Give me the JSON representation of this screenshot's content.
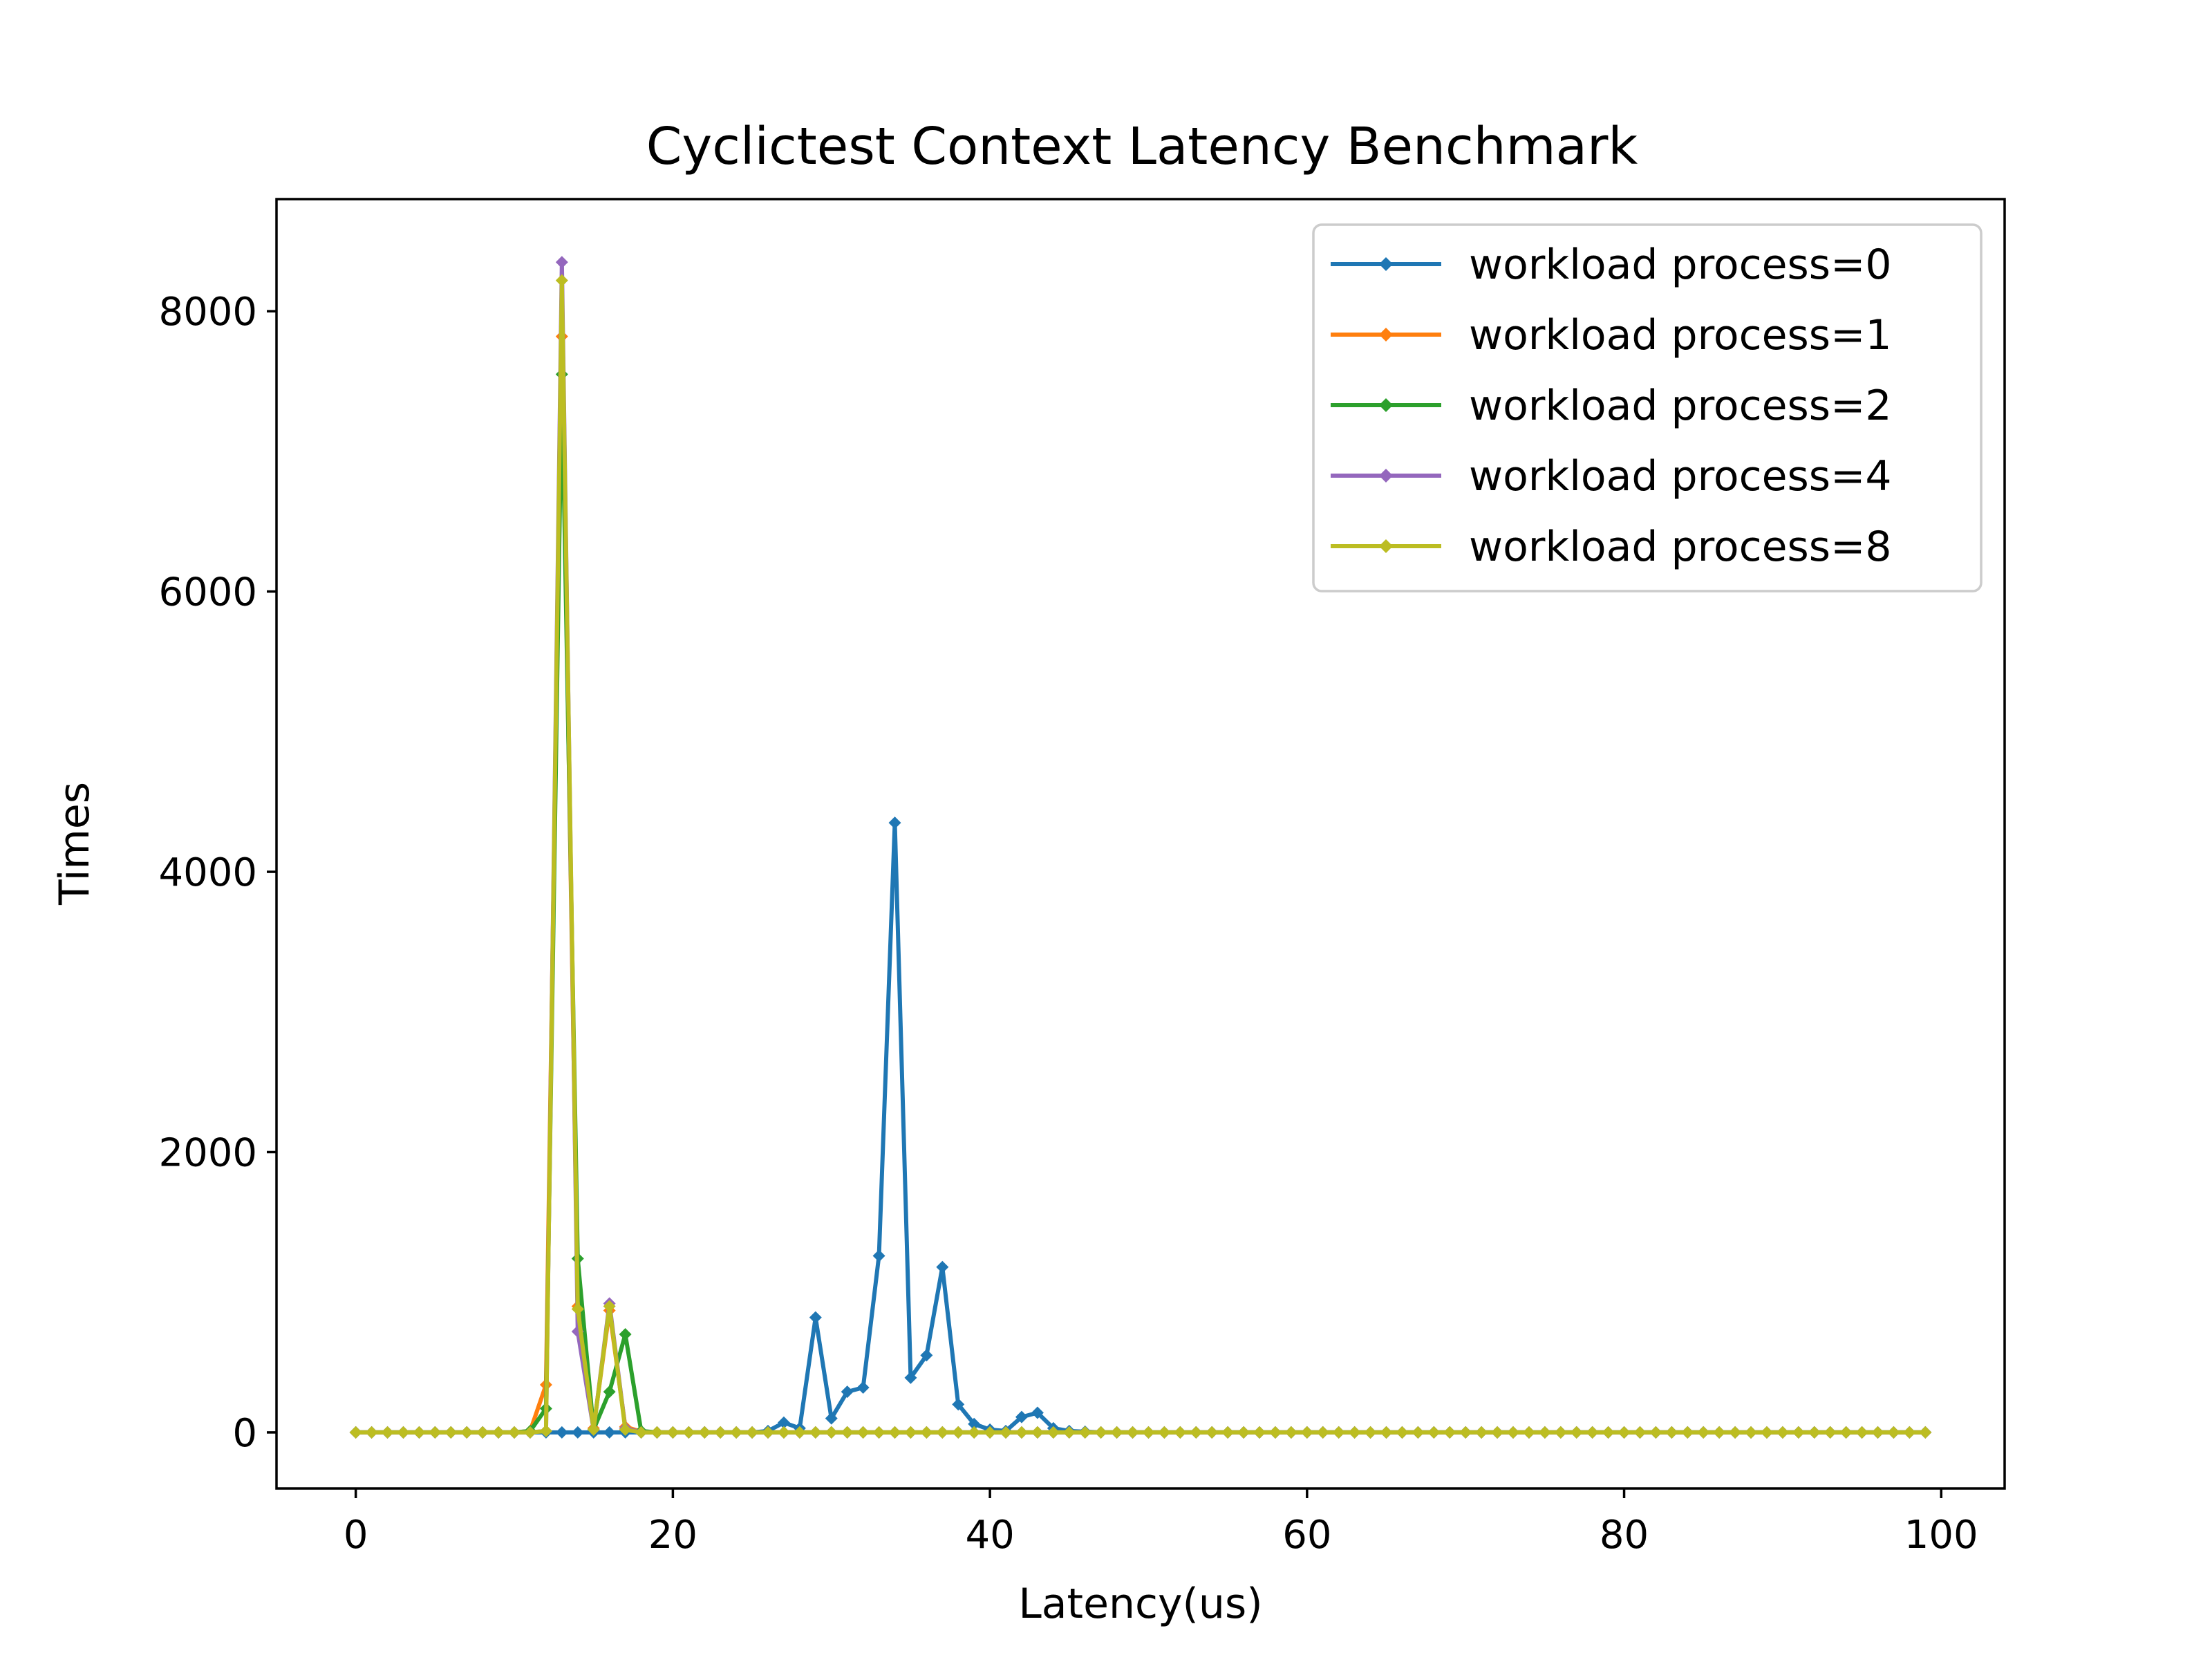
{
  "chart_data": {
    "type": "line",
    "title": "Cyclictest Context Latency Benchmark",
    "xlabel": "Latency(us)",
    "ylabel": "Times",
    "xlim": [
      -5,
      104
    ],
    "ylim": [
      -400,
      8800
    ],
    "xticks": [
      0,
      20,
      40,
      60,
      80,
      100
    ],
    "yticks": [
      0,
      2000,
      4000,
      6000,
      8000
    ],
    "grid": false,
    "legend_position": "top-right",
    "x_start": 0,
    "x_end": 99,
    "series": [
      {
        "name": "workload process=0",
        "color": "#1f77b4",
        "points": [
          [
            12,
            0
          ],
          [
            13,
            0
          ],
          [
            14,
            0
          ],
          [
            15,
            0
          ],
          [
            16,
            0
          ],
          [
            17,
            0
          ],
          [
            26,
            10
          ],
          [
            27,
            70
          ],
          [
            28,
            30
          ],
          [
            29,
            820
          ],
          [
            30,
            100
          ],
          [
            31,
            290
          ],
          [
            32,
            320
          ],
          [
            33,
            1260
          ],
          [
            34,
            4350
          ],
          [
            35,
            390
          ],
          [
            36,
            550
          ],
          [
            37,
            1180
          ],
          [
            38,
            200
          ],
          [
            39,
            60
          ],
          [
            40,
            20
          ],
          [
            41,
            10
          ],
          [
            42,
            110
          ],
          [
            43,
            140
          ],
          [
            44,
            30
          ],
          [
            45,
            10
          ],
          [
            46,
            5
          ]
        ]
      },
      {
        "name": "workload process=1",
        "color": "#ff7f0e",
        "points": [
          [
            11,
            10
          ],
          [
            12,
            340
          ],
          [
            13,
            7820
          ],
          [
            14,
            900
          ],
          [
            15,
            30
          ],
          [
            16,
            870
          ],
          [
            17,
            40
          ],
          [
            18,
            5
          ]
        ]
      },
      {
        "name": "workload process=2",
        "color": "#2ca02c",
        "points": [
          [
            11,
            10
          ],
          [
            12,
            170
          ],
          [
            13,
            7550
          ],
          [
            14,
            1240
          ],
          [
            15,
            20
          ],
          [
            16,
            290
          ],
          [
            17,
            700
          ],
          [
            18,
            10
          ]
        ]
      },
      {
        "name": "workload process=4",
        "color": "#9467bd",
        "points": [
          [
            12,
            10
          ],
          [
            13,
            8350
          ],
          [
            14,
            720
          ],
          [
            15,
            20
          ],
          [
            16,
            920
          ],
          [
            17,
            30
          ]
        ]
      },
      {
        "name": "workload process=8",
        "color": "#bcbd22",
        "points": [
          [
            12,
            10
          ],
          [
            13,
            8220
          ],
          [
            14,
            880
          ],
          [
            15,
            20
          ],
          [
            16,
            900
          ],
          [
            17,
            20
          ]
        ]
      }
    ]
  }
}
